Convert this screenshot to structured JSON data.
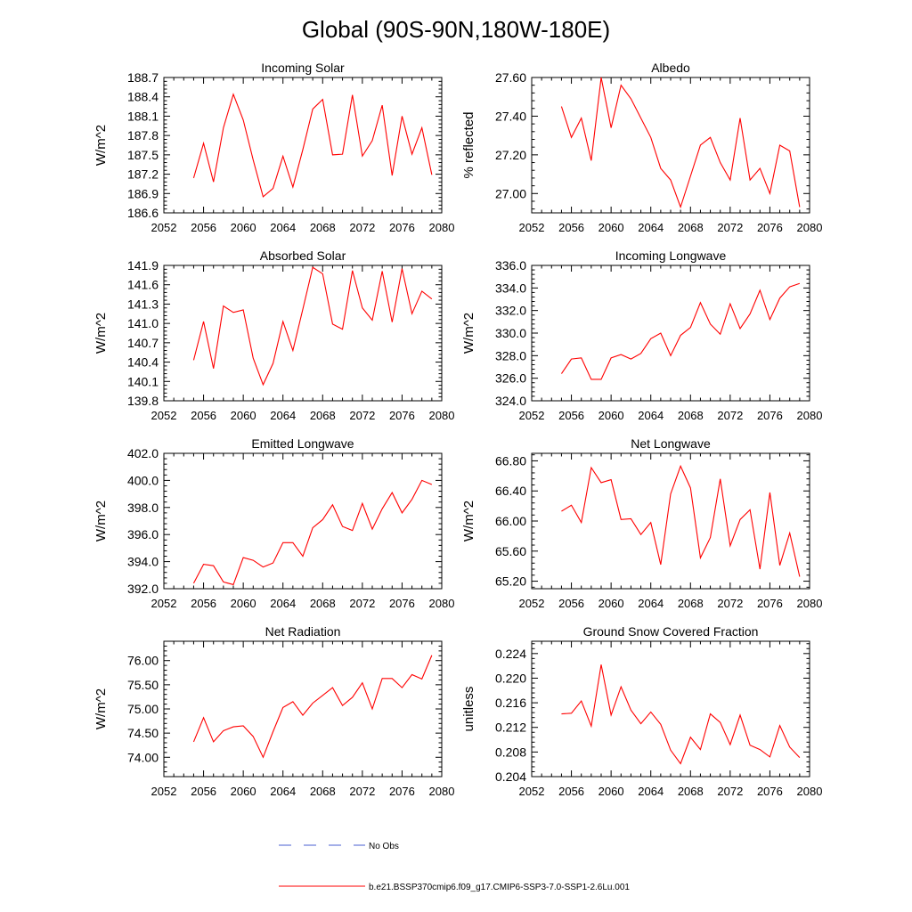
{
  "title": "Global (90S-90N,180W-180E)",
  "line_color": "#ff0000",
  "noobs_color": "#4a5fd0",
  "legend": {
    "noobs_label": "No Obs",
    "model_label": "b.e21.BSSP370cmip6.f09_g17.CMIP6-SSP3-7.0-SSP1-2.6Lu.001"
  },
  "chart_data": [
    {
      "type": "line",
      "title": "Incoming Solar",
      "ylabel": "W/m^2",
      "xlim": [
        2052,
        2080
      ],
      "xticks": [
        "2052",
        "2056",
        "2060",
        "2064",
        "2068",
        "2072",
        "2076",
        "2080"
      ],
      "ylim": [
        186.6,
        188.7
      ],
      "yticks": [
        "186.6",
        "186.9",
        "187.2",
        "187.5",
        "187.8",
        "188.1",
        "188.4",
        "188.7"
      ],
      "x": [
        2055,
        2056,
        2057,
        2058,
        2059,
        2060,
        2061,
        2062,
        2063,
        2064,
        2065,
        2066,
        2067,
        2068,
        2069,
        2070,
        2071,
        2072,
        2073,
        2074,
        2075,
        2076,
        2077,
        2078,
        2079
      ],
      "values": [
        187.14,
        187.68,
        187.08,
        187.92,
        188.44,
        188.04,
        187.42,
        186.85,
        186.98,
        187.48,
        187.0,
        187.58,
        188.21,
        188.36,
        187.5,
        187.51,
        188.43,
        187.48,
        187.72,
        188.27,
        187.18,
        188.1,
        187.51,
        187.92,
        187.19
      ]
    },
    {
      "type": "line",
      "title": "Albedo",
      "ylabel": "% reflected",
      "xlim": [
        2052,
        2080
      ],
      "xticks": [
        "2052",
        "2056",
        "2060",
        "2064",
        "2068",
        "2072",
        "2076",
        "2080"
      ],
      "ylim": [
        26.9,
        27.6
      ],
      "yticks": [
        "27.00",
        "27.20",
        "27.40",
        "27.60"
      ],
      "x": [
        2055,
        2056,
        2057,
        2058,
        2059,
        2060,
        2061,
        2062,
        2063,
        2064,
        2065,
        2066,
        2067,
        2068,
        2069,
        2070,
        2071,
        2072,
        2073,
        2074,
        2075,
        2076,
        2077,
        2078,
        2079
      ],
      "values": [
        27.45,
        27.29,
        27.39,
        27.17,
        27.6,
        27.34,
        27.56,
        27.49,
        27.39,
        27.29,
        27.13,
        27.07,
        26.93,
        27.09,
        27.25,
        27.29,
        27.16,
        27.07,
        27.39,
        27.07,
        27.13,
        27.0,
        27.25,
        27.22,
        26.93
      ]
    },
    {
      "type": "line",
      "title": "Absorbed Solar",
      "ylabel": "W/m^2",
      "xlim": [
        2052,
        2080
      ],
      "xticks": [
        "2052",
        "2056",
        "2060",
        "2064",
        "2068",
        "2072",
        "2076",
        "2080"
      ],
      "ylim": [
        139.8,
        141.9
      ],
      "yticks": [
        "139.8",
        "140.1",
        "140.4",
        "140.7",
        "141.0",
        "141.3",
        "141.6",
        "141.9"
      ],
      "x": [
        2055,
        2056,
        2057,
        2058,
        2059,
        2060,
        2061,
        2062,
        2063,
        2064,
        2065,
        2066,
        2067,
        2068,
        2069,
        2070,
        2071,
        2072,
        2073,
        2074,
        2075,
        2076,
        2077,
        2078,
        2079
      ],
      "values": [
        140.43,
        141.03,
        140.3,
        141.27,
        141.17,
        141.21,
        140.46,
        140.05,
        140.38,
        141.03,
        140.58,
        141.22,
        141.87,
        141.77,
        140.99,
        140.91,
        141.82,
        141.24,
        141.05,
        141.81,
        141.02,
        141.85,
        141.15,
        141.5,
        141.38
      ]
    },
    {
      "type": "line",
      "title": "Incoming Longwave",
      "ylabel": "W/m^2",
      "xlim": [
        2052,
        2080
      ],
      "xticks": [
        "2052",
        "2056",
        "2060",
        "2064",
        "2068",
        "2072",
        "2076",
        "2080"
      ],
      "ylim": [
        324.0,
        336.0
      ],
      "yticks": [
        "324.0",
        "326.0",
        "328.0",
        "330.0",
        "332.0",
        "334.0",
        "336.0"
      ],
      "x": [
        2055,
        2056,
        2057,
        2058,
        2059,
        2060,
        2061,
        2062,
        2063,
        2064,
        2065,
        2066,
        2067,
        2068,
        2069,
        2070,
        2071,
        2072,
        2073,
        2074,
        2075,
        2076,
        2077,
        2078,
        2079
      ],
      "values": [
        326.4,
        327.7,
        327.8,
        325.9,
        325.9,
        327.8,
        328.1,
        327.7,
        328.2,
        329.5,
        330.0,
        328.0,
        329.8,
        330.5,
        332.7,
        330.8,
        329.9,
        332.6,
        330.4,
        331.7,
        333.8,
        331.2,
        333.1,
        334.1,
        334.4
      ]
    },
    {
      "type": "line",
      "title": "Emitted Longwave",
      "ylabel": "W/m^2",
      "xlim": [
        2052,
        2080
      ],
      "xticks": [
        "2052",
        "2056",
        "2060",
        "2064",
        "2068",
        "2072",
        "2076",
        "2080"
      ],
      "ylim": [
        392.0,
        402.0
      ],
      "yticks": [
        "392.0",
        "394.0",
        "396.0",
        "398.0",
        "400.0",
        "402.0"
      ],
      "x": [
        2055,
        2056,
        2057,
        2058,
        2059,
        2060,
        2061,
        2062,
        2063,
        2064,
        2065,
        2066,
        2067,
        2068,
        2069,
        2070,
        2071,
        2072,
        2073,
        2074,
        2075,
        2076,
        2077,
        2078,
        2079
      ],
      "values": [
        392.4,
        393.8,
        393.7,
        392.5,
        392.3,
        394.3,
        394.1,
        393.6,
        393.9,
        395.4,
        395.4,
        394.4,
        396.5,
        397.1,
        398.2,
        396.6,
        396.3,
        398.3,
        396.4,
        397.9,
        399.1,
        397.6,
        398.6,
        400.0,
        399.7
      ]
    },
    {
      "type": "line",
      "title": "Net Longwave",
      "ylabel": "W/m^2",
      "xlim": [
        2052,
        2080
      ],
      "xticks": [
        "2052",
        "2056",
        "2060",
        "2064",
        "2068",
        "2072",
        "2076",
        "2080"
      ],
      "ylim": [
        65.1,
        66.9
      ],
      "yticks": [
        "65.20",
        "65.60",
        "66.00",
        "66.40",
        "66.80"
      ],
      "x": [
        2055,
        2056,
        2057,
        2058,
        2059,
        2060,
        2061,
        2062,
        2063,
        2064,
        2065,
        2066,
        2067,
        2068,
        2069,
        2070,
        2071,
        2072,
        2073,
        2074,
        2075,
        2076,
        2077,
        2078,
        2079
      ],
      "values": [
        66.13,
        66.21,
        65.98,
        66.71,
        66.51,
        66.55,
        66.02,
        66.03,
        65.82,
        65.98,
        65.42,
        66.36,
        66.73,
        66.44,
        65.51,
        65.78,
        66.56,
        65.67,
        66.02,
        66.15,
        65.36,
        66.38,
        65.41,
        65.84,
        65.26
      ]
    },
    {
      "type": "line",
      "title": "Net Radiation",
      "ylabel": "W/m^2",
      "xlim": [
        2052,
        2080
      ],
      "xticks": [
        "2052",
        "2056",
        "2060",
        "2064",
        "2068",
        "2072",
        "2076",
        "2080"
      ],
      "ylim": [
        73.6,
        76.4
      ],
      "yticks": [
        "74.00",
        "74.50",
        "75.00",
        "75.50",
        "76.00"
      ],
      "x": [
        2055,
        2056,
        2057,
        2058,
        2059,
        2060,
        2061,
        2062,
        2063,
        2064,
        2065,
        2066,
        2067,
        2068,
        2069,
        2070,
        2071,
        2072,
        2073,
        2074,
        2075,
        2076,
        2077,
        2078,
        2079
      ],
      "values": [
        74.32,
        74.82,
        74.32,
        74.55,
        74.63,
        74.65,
        74.43,
        74.0,
        74.53,
        75.03,
        75.15,
        74.87,
        75.12,
        75.28,
        75.44,
        75.07,
        75.24,
        75.54,
        75.0,
        75.63,
        75.63,
        75.44,
        75.71,
        75.62,
        76.11
      ]
    },
    {
      "type": "line",
      "title": "Ground Snow Covered Fraction",
      "ylabel": "unitless",
      "xlim": [
        2052,
        2080
      ],
      "xticks": [
        "2052",
        "2056",
        "2060",
        "2064",
        "2068",
        "2072",
        "2076",
        "2080"
      ],
      "ylim": [
        0.204,
        0.226
      ],
      "yticks": [
        "0.204",
        "0.208",
        "0.212",
        "0.216",
        "0.220",
        "0.224"
      ],
      "x": [
        2055,
        2056,
        2057,
        2058,
        2059,
        2060,
        2061,
        2062,
        2063,
        2064,
        2065,
        2066,
        2067,
        2068,
        2069,
        2070,
        2071,
        2072,
        2073,
        2074,
        2075,
        2076,
        2077,
        2078,
        2079
      ],
      "values": [
        0.2142,
        0.2143,
        0.2163,
        0.2122,
        0.2222,
        0.214,
        0.2186,
        0.2148,
        0.2126,
        0.2145,
        0.2125,
        0.2083,
        0.2061,
        0.2104,
        0.2084,
        0.2142,
        0.2128,
        0.2092,
        0.214,
        0.2091,
        0.2084,
        0.2072,
        0.2123,
        0.2088,
        0.2071
      ]
    }
  ]
}
